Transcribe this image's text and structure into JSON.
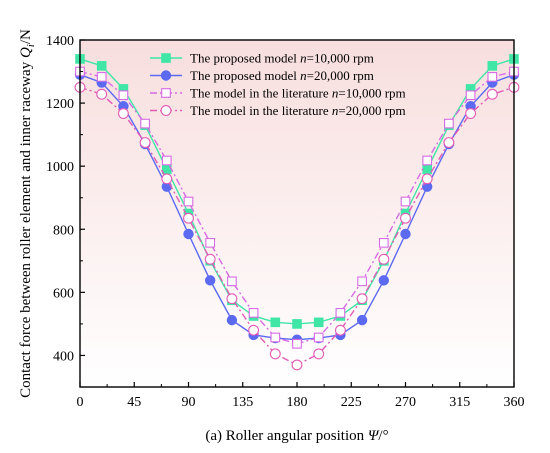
{
  "chart_data": {
    "type": "line",
    "title": "",
    "xlabel": "(a) Roller angular position Ψ/°",
    "ylabel": "Contact force between roller element and inner raceway Q_i/N",
    "xlim": [
      0,
      360
    ],
    "ylim": [
      300,
      1400
    ],
    "xticks": [
      0,
      45,
      90,
      135,
      180,
      225,
      270,
      315,
      360
    ],
    "yticks": [
      400,
      600,
      800,
      1000,
      1200,
      1400
    ],
    "grid": false,
    "legend_position": "top-center",
    "background_gradient": [
      "#f8dede",
      "#ffffff"
    ],
    "x": [
      0,
      18,
      36,
      54,
      72,
      90,
      108,
      126,
      144,
      162,
      180,
      198,
      216,
      234,
      252,
      270,
      288,
      306,
      324,
      342,
      360
    ],
    "series": [
      {
        "name": "The proposed model   n=10,000 rpm",
        "name_parts": [
          "The proposed model   ",
          "n",
          "=10,000 rpm"
        ],
        "color": "#3fe6a6",
        "marker": "filled-square",
        "dash": "solid",
        "values": [
          1340,
          1318,
          1245,
          1130,
          990,
          850,
          700,
          575,
          525,
          505,
          500,
          505,
          525,
          575,
          700,
          850,
          990,
          1130,
          1245,
          1318,
          1340
        ]
      },
      {
        "name": "The proposed model   n=20,000 rpm",
        "name_parts": [
          "The proposed model   ",
          "n",
          "=20,000 rpm"
        ],
        "color": "#5b6af0",
        "marker": "filled-circle",
        "dash": "solid",
        "values": [
          1290,
          1265,
          1190,
          1070,
          935,
          785,
          638,
          512,
          465,
          455,
          450,
          455,
          465,
          512,
          638,
          785,
          935,
          1070,
          1190,
          1265,
          1290
        ]
      },
      {
        "name": "The model in the literature   n=10,000 rpm",
        "name_parts": [
          "The model in the literature   ",
          "n",
          "=10,000 rpm"
        ],
        "color": "#d66be4",
        "marker": "open-square",
        "dash": "dashdot",
        "values": [
          1300,
          1283,
          1225,
          1135,
          1018,
          888,
          757,
          635,
          535,
          457,
          437,
          457,
          535,
          635,
          757,
          888,
          1018,
          1135,
          1225,
          1283,
          1300
        ]
      },
      {
        "name": "The model in the literature   n=20,000 rpm",
        "name_parts": [
          "The model in the literature   ",
          "n",
          "=20,000 rpm"
        ],
        "color": "#e25bb6",
        "marker": "open-circle",
        "dash": "dashdot",
        "values": [
          1250,
          1228,
          1167,
          1075,
          960,
          835,
          705,
          580,
          480,
          405,
          370,
          405,
          480,
          580,
          705,
          835,
          960,
          1075,
          1167,
          1228,
          1250
        ]
      }
    ]
  }
}
